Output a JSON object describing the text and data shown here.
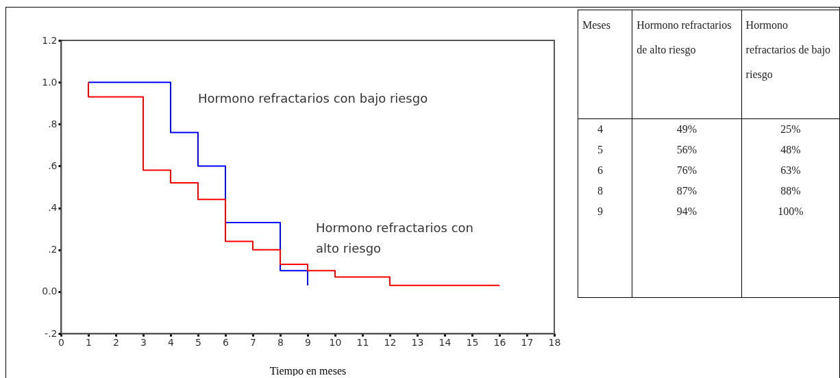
{
  "chart_data": [
    {
      "type": "step",
      "xlabel": "Tiempo en meses",
      "xlim": [
        0,
        18
      ],
      "xticks": [
        0,
        1,
        2,
        3,
        4,
        5,
        6,
        7,
        8,
        9,
        10,
        11,
        12,
        13,
        14,
        15,
        16,
        17,
        18
      ],
      "ylim": [
        -0.2,
        1.2
      ],
      "yticks": [
        {
          "value": -0.2,
          "label": "-.2"
        },
        {
          "value": 0,
          "label": "0.0"
        },
        {
          "value": 0.2,
          "label": ".2"
        },
        {
          "value": 0.4,
          "label": ".4"
        },
        {
          "value": 0.6,
          "label": ".6"
        },
        {
          "value": 0.8,
          "label": ".8"
        },
        {
          "value": 1.0,
          "label": "1.0"
        },
        {
          "value": 1.2,
          "label": "1.2"
        }
      ],
      "legend": false,
      "grid": false,
      "marker": "none",
      "line_style": "solid",
      "series": [
        {
          "name": "Hormono refractarios con bajo riesgo",
          "color": "#0000ff",
          "x": [
            1,
            4,
            5,
            6,
            8,
            9
          ],
          "values": [
            1.0,
            0.76,
            0.6,
            0.33,
            0.1,
            0.03
          ]
        },
        {
          "name": "Hormono refractarios con alto riesgo",
          "color": "#ff0000",
          "x": [
            1,
            1,
            3,
            4,
            5,
            6,
            7,
            8,
            9,
            10,
            12,
            16
          ],
          "values": [
            1.0,
            0.93,
            0.58,
            0.52,
            0.44,
            0.24,
            0.2,
            0.13,
            0.1,
            0.07,
            0.03,
            0.03
          ]
        }
      ]
    },
    {
      "type": "other",
      "annotations": [
        "Meses",
        "Hormono refractarios de alto riesgo",
        "Hormono refractarios de bajo riesgo",
        "4",
        "49%",
        "25%",
        "5",
        "56%",
        "48%",
        "6",
        "76%",
        "63%",
        "8",
        "87%",
        "88%",
        "9",
        "94%",
        "100%"
      ]
    }
  ]
}
